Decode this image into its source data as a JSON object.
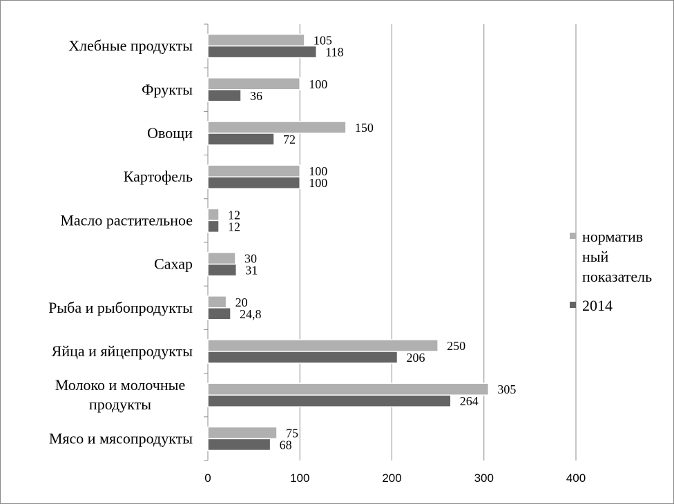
{
  "chart_data": {
    "type": "bar",
    "orientation": "horizontal",
    "categories": [
      "Хлебные продукты",
      "Фрукты",
      "Овощи",
      "Картофель",
      "Масло растительное",
      "Сахар",
      "Рыба и рыбопродукты",
      "Яйца и яйцепродукты",
      [
        "Молоко и молочные",
        "продукты"
      ],
      "Мясо и мясопродукты"
    ],
    "series": [
      {
        "name": [
          "норматив",
          "ный",
          "показатель"
        ],
        "color": "#b0b0b0",
        "values": [
          105,
          100,
          150,
          100,
          12,
          30,
          20,
          250,
          305,
          75
        ],
        "labels": [
          "105",
          "100",
          "150",
          "100",
          "12",
          "30",
          "20",
          "250",
          "305",
          "75"
        ]
      },
      {
        "name": [
          "2014"
        ],
        "color": "#646464",
        "values": [
          118,
          36,
          72,
          100,
          12,
          31,
          24.8,
          206,
          264,
          68
        ],
        "labels": [
          "118",
          "36",
          "72",
          "100",
          "12",
          "31",
          "24,8",
          "206",
          "264",
          "68"
        ]
      }
    ],
    "xlim": [
      0,
      400
    ],
    "x_ticks": [
      0,
      100,
      200,
      300,
      400
    ],
    "x_tick_labels": [
      "0",
      "100",
      "200",
      "300",
      "400"
    ],
    "grid": "vertical",
    "legend_position": "right",
    "title": "",
    "xlabel": "",
    "ylabel": ""
  }
}
